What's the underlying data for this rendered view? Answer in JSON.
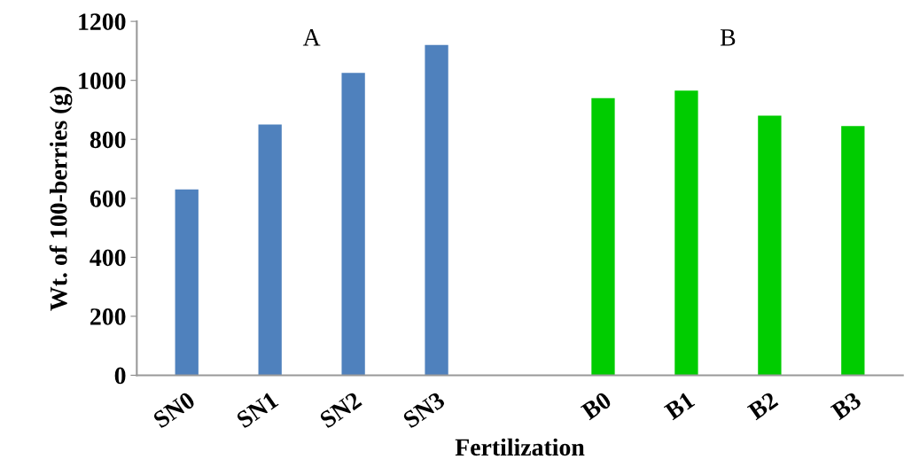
{
  "chart_data": {
    "type": "bar",
    "xlabel": "Fertilization",
    "ylabel": "Wt. of 100-berries (g)",
    "categories": [
      "SN0",
      "SN1",
      "SN2",
      "SN3",
      null,
      "B0",
      "B1",
      "B2",
      "B3"
    ],
    "values": [
      630,
      850,
      1025,
      1120,
      null,
      940,
      965,
      880,
      845
    ],
    "colors": [
      "#4f81bd",
      "#4f81bd",
      "#4f81bd",
      "#4f81bd",
      null,
      "#00cc00",
      "#00cc00",
      "#00cc00",
      "#00cc00"
    ],
    "ylim": [
      0,
      1200
    ],
    "yticks": [
      0,
      200,
      400,
      600,
      800,
      1000,
      1200
    ],
    "grid": false,
    "annotations": [
      "A",
      "B"
    ]
  }
}
